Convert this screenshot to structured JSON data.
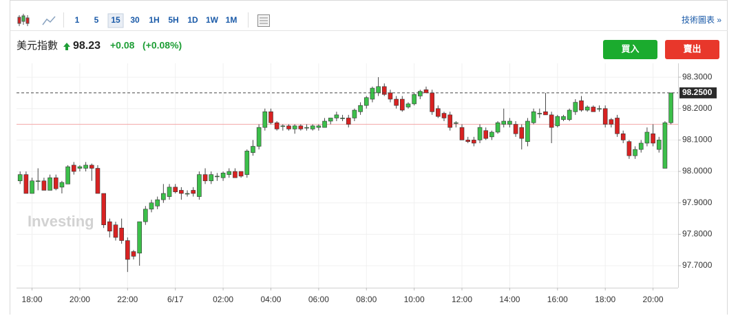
{
  "toolbar": {
    "intervals": [
      "1",
      "5",
      "15",
      "30",
      "1H",
      "5H",
      "1D",
      "1W",
      "1M"
    ],
    "technical": "技術圖表 »"
  },
  "quote": {
    "name": "美元指數",
    "price": 98.23,
    "change": "+0.08",
    "change_pct": "(+0.08%)",
    "buy": "買入",
    "sell": "賣出"
  },
  "watermark": "Investing",
  "chart_data": {
    "type": "candlestick",
    "x": [
      17.5,
      17.75,
      18,
      18.25,
      18.5,
      18.75,
      19,
      19.25,
      19.5,
      19.75,
      20,
      20.25,
      20.5,
      20.75,
      21,
      21.25,
      21.5,
      21.75,
      22,
      22.25,
      22.5,
      22.75,
      23,
      23.25,
      23.5,
      23.75,
      24,
      24.25,
      24.5,
      24.75,
      25,
      25.25,
      25.5,
      25.75,
      26,
      26.25,
      26.5,
      26.75,
      27,
      27.25,
      27.5,
      27.75,
      28,
      28.25,
      28.5,
      28.75,
      29,
      29.25,
      29.5,
      29.75,
      30,
      30.25,
      30.5,
      30.75,
      31,
      31.25,
      31.5,
      31.75,
      32,
      32.25,
      32.5,
      32.75,
      33,
      33.25,
      33.5,
      33.75,
      34,
      34.25,
      34.5,
      34.75,
      35,
      35.25,
      35.5,
      35.75,
      36,
      36.25,
      36.5,
      36.75,
      37,
      37.25,
      37.5,
      37.75,
      38,
      38.25,
      38.5,
      38.75,
      39,
      39.25,
      39.5,
      39.75,
      40,
      40.25,
      40.5,
      40.75,
      41,
      41.25,
      41.5,
      41.75,
      42,
      42.25,
      42.5,
      42.75,
      43,
      43.25,
      43.5,
      43.75,
      44,
      44.25,
      44.5,
      44.75
    ],
    "open": [
      97.97,
      97.99,
      97.93,
      97.97,
      97.97,
      97.94,
      97.98,
      97.95,
      97.96,
      98.02,
      98.01,
      98.01,
      98.02,
      98.01,
      97.93,
      97.84,
      97.83,
      97.82,
      97.78,
      97.745,
      97.74,
      97.84,
      97.88,
      97.89,
      97.91,
      97.92,
      97.95,
      97.94,
      97.93,
      97.94,
      97.92,
      97.99,
      97.97,
      97.985,
      97.98,
      97.99,
      98.0,
      98.0,
      97.99,
      98.06,
      98.08,
      98.14,
      98.19,
      98.155,
      98.145,
      98.145,
      98.135,
      98.145,
      98.14,
      98.135,
      98.14,
      98.14,
      98.16,
      98.17,
      98.17,
      98.17,
      98.17,
      98.19,
      98.21,
      98.23,
      98.25,
      98.27,
      98.25,
      98.23,
      98.23,
      98.205,
      98.215,
      98.24,
      98.26,
      98.25,
      98.2,
      98.185,
      98.18,
      98.155,
      98.14,
      98.1,
      98.1,
      98.1,
      98.13,
      98.11,
      98.125,
      98.15,
      98.15,
      98.15,
      98.14,
      98.095,
      98.155,
      98.185,
      98.19,
      98.18,
      98.145,
      98.165,
      98.165,
      98.19,
      98.225,
      98.195,
      98.205,
      98.2,
      98.2,
      98.165,
      98.17,
      98.12,
      98.095,
      98.05,
      98.07,
      98.09,
      98.12,
      98.07,
      98.01,
      98.155
    ],
    "high": [
      98.0,
      98.0,
      97.98,
      98.01,
      97.98,
      97.99,
      97.99,
      97.97,
      98.02,
      98.03,
      98.02,
      98.03,
      98.025,
      98.02,
      97.93,
      97.85,
      97.84,
      97.85,
      97.79,
      97.75,
      97.84,
      97.89,
      97.91,
      97.92,
      97.96,
      97.96,
      97.96,
      97.95,
      97.94,
      97.95,
      98.0,
      98.01,
      98.0,
      97.995,
      98.0,
      98.01,
      98.01,
      98.0,
      98.07,
      98.1,
      98.15,
      98.2,
      98.2,
      98.16,
      98.15,
      98.15,
      98.15,
      98.15,
      98.15,
      98.15,
      98.15,
      98.17,
      98.17,
      98.19,
      98.18,
      98.18,
      98.2,
      98.22,
      98.24,
      98.27,
      98.3,
      98.28,
      98.26,
      98.24,
      98.24,
      98.22,
      98.25,
      98.26,
      98.27,
      98.26,
      98.21,
      98.19,
      98.19,
      98.16,
      98.15,
      98.11,
      98.11,
      98.15,
      98.14,
      98.13,
      98.16,
      98.2,
      98.17,
      98.16,
      98.15,
      98.17,
      98.2,
      98.2,
      98.25,
      98.19,
      98.18,
      98.18,
      98.2,
      98.23,
      98.24,
      98.21,
      98.21,
      98.21,
      98.21,
      98.17,
      98.18,
      98.13,
      98.1,
      98.08,
      98.1,
      98.14,
      98.15,
      98.11,
      98.16,
      98.25
    ],
    "low": [
      97.96,
      97.93,
      97.93,
      97.94,
      97.94,
      97.94,
      97.94,
      97.93,
      97.96,
      97.99,
      98.0,
      98.0,
      97.97,
      97.93,
      97.82,
      97.79,
      97.78,
      97.77,
      97.68,
      97.72,
      97.7,
      97.83,
      97.87,
      97.88,
      97.9,
      97.91,
      97.93,
      97.91,
      97.92,
      97.92,
      97.91,
      97.96,
      97.96,
      97.97,
      97.97,
      97.98,
      97.98,
      97.98,
      97.98,
      98.05,
      98.07,
      98.13,
      98.15,
      98.13,
      98.13,
      98.13,
      98.12,
      98.13,
      98.13,
      98.13,
      98.13,
      98.14,
      98.15,
      98.16,
      98.16,
      98.14,
      98.16,
      98.18,
      98.2,
      98.22,
      98.24,
      98.24,
      98.22,
      98.2,
      98.19,
      98.2,
      98.21,
      98.23,
      98.25,
      98.18,
      98.17,
      98.16,
      98.13,
      98.14,
      98.1,
      98.09,
      98.08,
      98.09,
      98.1,
      98.1,
      98.12,
      98.14,
      98.14,
      98.11,
      98.07,
      98.08,
      98.15,
      98.17,
      98.18,
      98.09,
      98.14,
      98.16,
      98.16,
      98.18,
      98.19,
      98.19,
      98.19,
      98.19,
      98.14,
      98.14,
      98.11,
      98.09,
      98.04,
      98.04,
      98.06,
      98.08,
      98.08,
      98.06,
      98.01,
      98.15
    ],
    "close": [
      97.99,
      97.93,
      97.97,
      97.97,
      97.94,
      97.98,
      97.945,
      97.965,
      98.015,
      98.0,
      98.015,
      98.02,
      98.01,
      97.93,
      97.83,
      97.81,
      97.79,
      97.78,
      97.72,
      97.73,
      97.84,
      97.88,
      97.9,
      97.91,
      97.93,
      97.95,
      97.935,
      97.93,
      97.93,
      97.93,
      97.99,
      97.97,
      97.99,
      97.985,
      97.995,
      98.0,
      97.98,
      97.985,
      98.065,
      98.08,
      98.14,
      98.19,
      98.155,
      98.135,
      98.145,
      98.135,
      98.145,
      98.135,
      98.14,
      98.145,
      98.145,
      98.16,
      98.17,
      98.18,
      98.17,
      98.15,
      98.195,
      98.21,
      98.235,
      98.265,
      98.27,
      98.245,
      98.23,
      98.21,
      98.195,
      98.215,
      98.245,
      98.255,
      98.25,
      98.19,
      98.175,
      98.17,
      98.14,
      98.155,
      98.1,
      98.095,
      98.09,
      98.14,
      98.105,
      98.125,
      98.155,
      98.16,
      98.16,
      98.12,
      98.105,
      98.16,
      98.19,
      98.185,
      98.18,
      98.14,
      98.175,
      98.175,
      98.195,
      98.22,
      98.195,
      98.205,
      98.19,
      98.2,
      98.15,
      98.15,
      98.12,
      98.1,
      98.05,
      98.07,
      98.09,
      98.125,
      98.09,
      98.1,
      98.155,
      98.25
    ],
    "up_color": "#3cbf4a",
    "down_color": "#d82222",
    "xlim": [
      17.35,
      45.05
    ],
    "ylim": [
      97.63,
      98.344
    ],
    "xticks": [
      {
        "value": 18,
        "label": "18:00"
      },
      {
        "value": 20,
        "label": "20:00"
      },
      {
        "value": 22,
        "label": "22:00"
      },
      {
        "value": 24,
        "label": "6/17"
      },
      {
        "value": 26,
        "label": "02:00"
      },
      {
        "value": 28,
        "label": "04:00"
      },
      {
        "value": 30,
        "label": "06:00"
      },
      {
        "value": 32,
        "label": "08:00"
      },
      {
        "value": 34,
        "label": "10:00"
      },
      {
        "value": 36,
        "label": "12:00"
      },
      {
        "value": 38,
        "label": "14:00"
      },
      {
        "value": 40,
        "label": "16:00"
      },
      {
        "value": 42,
        "label": "18:00"
      },
      {
        "value": 44,
        "label": "20:00"
      }
    ],
    "yticks": [
      {
        "value": 97.7,
        "label": "97.7000"
      },
      {
        "value": 97.8,
        "label": "97.8000"
      },
      {
        "value": 97.9,
        "label": "97.9000"
      },
      {
        "value": 98.0,
        "label": "98.0000"
      },
      {
        "value": 98.1,
        "label": "98.1000"
      },
      {
        "value": 98.2,
        "label": "98.2000"
      },
      {
        "value": 98.3,
        "label": "98.3000"
      }
    ],
    "grid": true,
    "ref_line": 98.15,
    "current_price": {
      "value": 98.25,
      "label": "98.2500"
    }
  }
}
